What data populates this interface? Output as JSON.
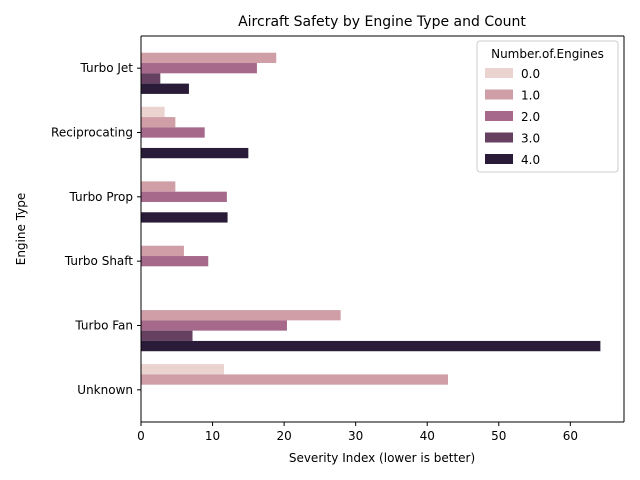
{
  "chart_data": {
    "type": "bar",
    "orientation": "horizontal",
    "title": "Aircraft Safety by Engine Type and Count",
    "xlabel": "Severity Index (lower is better)",
    "ylabel": "Engine Type",
    "xlim": [
      0,
      67.5
    ],
    "xticks": [
      0,
      10,
      20,
      30,
      40,
      50,
      60
    ],
    "grid": false,
    "legend_position": "top-right",
    "categories": [
      "Turbo Jet",
      "Reciprocating",
      "Turbo Prop",
      "Turbo Shaft",
      "Turbo Fan",
      "Unknown"
    ],
    "legend_title": "Number.of.Engines",
    "series": [
      {
        "name": "0.0",
        "color": "#ebd3cf",
        "values": [
          null,
          3.3,
          null,
          null,
          null,
          11.6
        ]
      },
      {
        "name": "1.0",
        "color": "#cf9ea6",
        "values": [
          18.9,
          4.8,
          4.8,
          6.0,
          27.9,
          42.9
        ]
      },
      {
        "name": "2.0",
        "color": "#a6698c",
        "values": [
          16.2,
          8.9,
          12.0,
          9.4,
          20.4,
          null
        ]
      },
      {
        "name": "3.0",
        "color": "#654061",
        "values": [
          2.7,
          null,
          null,
          null,
          7.2,
          null
        ]
      },
      {
        "name": "4.0",
        "color": "#2a1c38",
        "values": [
          6.7,
          15.0,
          12.1,
          null,
          64.2,
          null
        ]
      }
    ]
  }
}
